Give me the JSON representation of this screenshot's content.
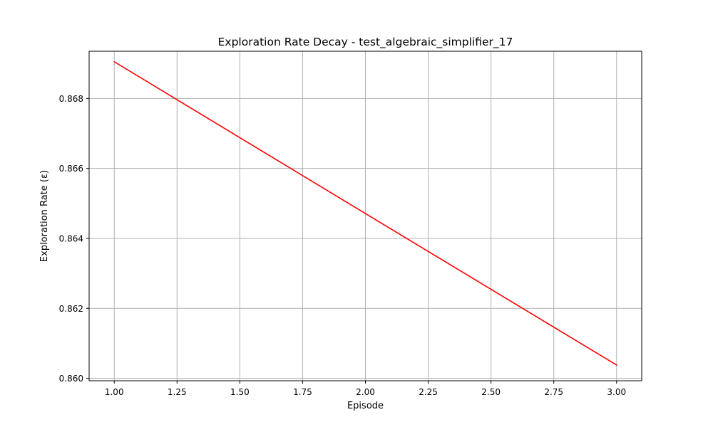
{
  "chart_data": {
    "type": "line",
    "title": "Exploration Rate Decay - test_algebraic_simplifier_17",
    "xlabel": "Episode",
    "ylabel": "Exploration Rate (ε)",
    "xlim": [
      0.9,
      3.1
    ],
    "ylim": [
      0.85993,
      0.86935
    ],
    "grid": true,
    "x_ticks": [
      1.0,
      1.25,
      1.5,
      1.75,
      2.0,
      2.25,
      2.5,
      2.75,
      3.0
    ],
    "x_tick_labels": [
      "1.00",
      "1.25",
      "1.50",
      "1.75",
      "2.00",
      "2.25",
      "2.50",
      "2.75",
      "3.00"
    ],
    "y_ticks": [
      0.86,
      0.862,
      0.864,
      0.866,
      0.868
    ],
    "y_tick_labels": [
      "0.860",
      "0.862",
      "0.864",
      "0.866",
      "0.868"
    ],
    "series": [
      {
        "color": "#ff0000",
        "x": [
          1,
          2,
          3
        ],
        "y": [
          0.86905,
          0.86471,
          0.86038
        ]
      }
    ]
  }
}
